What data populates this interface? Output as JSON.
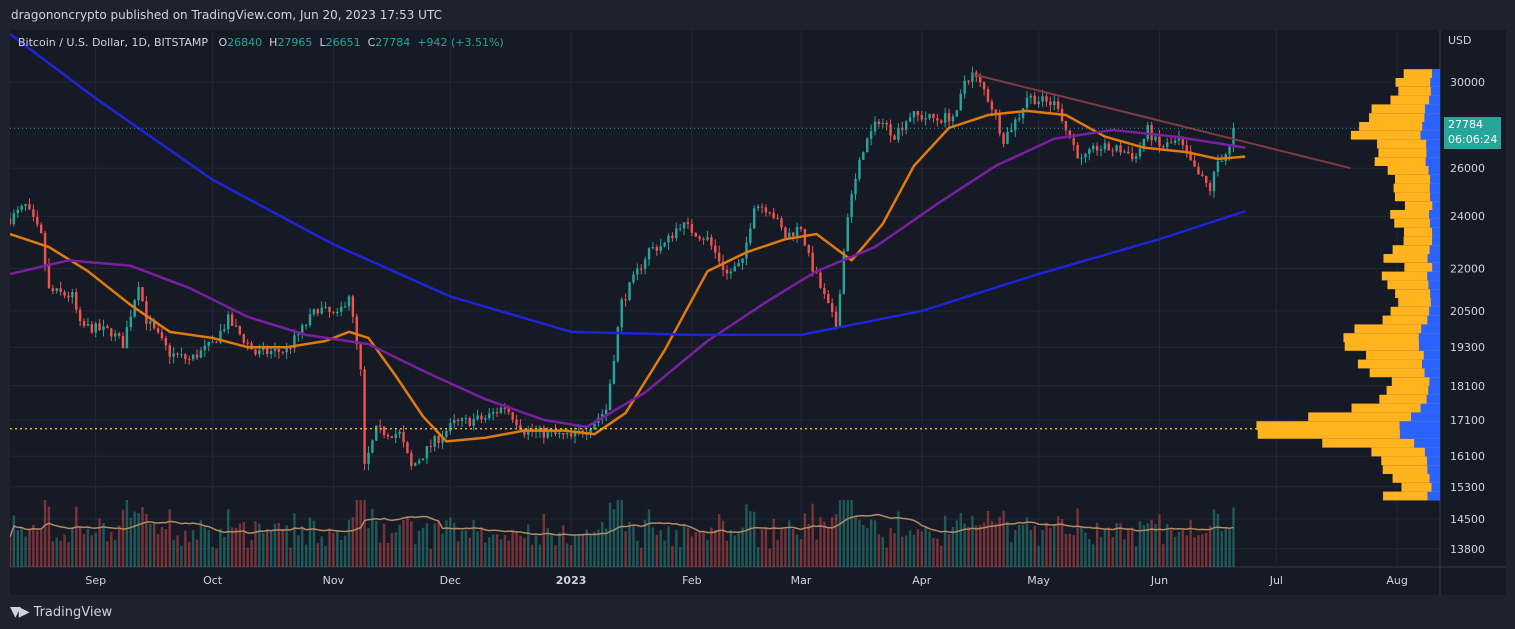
{
  "publisher": "dragononcrypto published on TradingView.com, Jun 20, 2023 17:53 UTC",
  "legend": {
    "symbol": "Bitcoin / U.S. Dollar, 1D, BITSTAMP",
    "o_label": "O",
    "o": "26840",
    "h_label": "H",
    "h": "27965",
    "l_label": "L",
    "l": "26651",
    "c_label": "C",
    "c": "27784",
    "change": "+942 (+3.51%)"
  },
  "currency": "USD",
  "last_price": "27784",
  "countdown": "06:06:24",
  "footer": "TradingView",
  "colors": {
    "background": "#161a25",
    "up": "#26a69a",
    "down": "#ef5350",
    "ma_fast": "#e07b0e",
    "ma_mid": "#7b1fa2",
    "ma_slow": "#1e24d8",
    "volume_profile": "#ffb31f",
    "volume_profile_dark": "#2962ff",
    "trendline": "#7e3b47",
    "poc_line": "#ffd600"
  },
  "chart_data": {
    "type": "candlestick",
    "symbol": "Bitcoin / U.S. Dollar, 1D, BITSTAMP",
    "y_scale": "log",
    "ylim": [
      13500,
      32500
    ],
    "y_ticks": [
      30000,
      26000,
      24000,
      22000,
      20500,
      19300,
      18100,
      17100,
      16100,
      15300,
      14500,
      13800
    ],
    "x_ticks": [
      "Sep",
      "Oct",
      "Nov",
      "Dec",
      "2023",
      "Feb",
      "Mar",
      "Apr",
      "May",
      "Jun",
      "Jul",
      "Aug"
    ],
    "tick_dates": [
      "2022-09-01",
      "2022-10-01",
      "2022-11-01",
      "2022-12-01",
      "2023-01-01",
      "2023-02-01",
      "2023-03-01",
      "2023-04-01",
      "2023-05-01",
      "2023-06-01",
      "2023-07-01",
      "2023-08-01"
    ],
    "xlim": [
      "2022-08-10",
      "2023-08-12"
    ],
    "last_close": 27784,
    "poc_level": 16850,
    "trendline": {
      "start": [
        "2023-04-14",
        30400
      ],
      "end": [
        "2023-07-20",
        26000
      ]
    },
    "close_path": [
      [
        "2022-08-10",
        23900
      ],
      [
        "2022-08-14",
        24400
      ],
      [
        "2022-08-18",
        23200
      ],
      [
        "2022-08-20",
        21200
      ],
      [
        "2022-08-26",
        21000
      ],
      [
        "2022-08-28",
        20000
      ],
      [
        "2022-09-05",
        19800
      ],
      [
        "2022-09-08",
        19400
      ],
      [
        "2022-09-12",
        21500
      ],
      [
        "2022-09-14",
        20200
      ],
      [
        "2022-09-20",
        19100
      ],
      [
        "2022-09-25",
        18900
      ],
      [
        "2022-10-01",
        19400
      ],
      [
        "2022-10-05",
        20200
      ],
      [
        "2022-10-12",
        19100
      ],
      [
        "2022-10-20",
        19200
      ],
      [
        "2022-10-28",
        20600
      ],
      [
        "2022-11-02",
        20300
      ],
      [
        "2022-11-05",
        21100
      ],
      [
        "2022-11-08",
        18500
      ],
      [
        "2022-11-09",
        15800
      ],
      [
        "2022-11-12",
        16800
      ],
      [
        "2022-11-18",
        16700
      ],
      [
        "2022-11-21",
        15800
      ],
      [
        "2022-11-27",
        16500
      ],
      [
        "2022-12-02",
        17000
      ],
      [
        "2022-12-10",
        17150
      ],
      [
        "2022-12-15",
        17500
      ],
      [
        "2022-12-20",
        16800
      ],
      [
        "2022-12-27",
        16700
      ],
      [
        "2023-01-01",
        16600
      ],
      [
        "2023-01-05",
        16850
      ],
      [
        "2023-01-10",
        17400
      ],
      [
        "2023-01-14",
        20800
      ],
      [
        "2023-01-21",
        22700
      ],
      [
        "2023-01-25",
        22900
      ],
      [
        "2023-01-29",
        23700
      ],
      [
        "2023-02-05",
        23100
      ],
      [
        "2023-02-10",
        21800
      ],
      [
        "2023-02-14",
        22200
      ],
      [
        "2023-02-17",
        24500
      ],
      [
        "2023-02-21",
        24300
      ],
      [
        "2023-02-25",
        23200
      ],
      [
        "2023-03-01",
        23600
      ],
      [
        "2023-03-03",
        22400
      ],
      [
        "2023-03-09",
        20300
      ],
      [
        "2023-03-10",
        20000
      ],
      [
        "2023-03-13",
        24100
      ],
      [
        "2023-03-17",
        26900
      ],
      [
        "2023-03-21",
        28200
      ],
      [
        "2023-03-25",
        27500
      ],
      [
        "2023-03-29",
        28400
      ],
      [
        "2023-04-05",
        28200
      ],
      [
        "2023-04-10",
        28400
      ],
      [
        "2023-04-12",
        30100
      ],
      [
        "2023-04-14",
        30400
      ],
      [
        "2023-04-17",
        29600
      ],
      [
        "2023-04-19",
        28800
      ],
      [
        "2023-04-22",
        27300
      ],
      [
        "2023-04-26",
        28400
      ],
      [
        "2023-04-28",
        29300
      ],
      [
        "2023-05-03",
        29000
      ],
      [
        "2023-05-06",
        28900
      ],
      [
        "2023-05-08",
        27700
      ],
      [
        "2023-05-12",
        26300
      ],
      [
        "2023-05-16",
        26900
      ],
      [
        "2023-05-22",
        26800
      ],
      [
        "2023-05-26",
        26500
      ],
      [
        "2023-05-29",
        27700
      ],
      [
        "2023-06-01",
        26900
      ],
      [
        "2023-06-06",
        27200
      ],
      [
        "2023-06-10",
        25900
      ],
      [
        "2023-06-14",
        25100
      ],
      [
        "2023-06-16",
        26300
      ],
      [
        "2023-06-19",
        26840
      ],
      [
        "2023-06-20",
        27784
      ]
    ],
    "series": [
      {
        "name": "",
        "color": "#e07b0e",
        "points": [
          [
            "2022-08-10",
            23300
          ],
          [
            "2022-08-20",
            22800
          ],
          [
            "2022-08-30",
            21900
          ],
          [
            "2022-09-10",
            20700
          ],
          [
            "2022-09-20",
            19800
          ],
          [
            "2022-10-01",
            19600
          ],
          [
            "2022-10-10",
            19300
          ],
          [
            "2022-10-20",
            19300
          ],
          [
            "2022-10-30",
            19500
          ],
          [
            "2022-11-05",
            19800
          ],
          [
            "2022-11-10",
            19600
          ],
          [
            "2022-11-17",
            18400
          ],
          [
            "2022-11-24",
            17200
          ],
          [
            "2022-11-30",
            16500
          ],
          [
            "2022-12-10",
            16600
          ],
          [
            "2022-12-20",
            16800
          ],
          [
            "2022-12-30",
            16800
          ],
          [
            "2023-01-07",
            16700
          ],
          [
            "2023-01-15",
            17300
          ],
          [
            "2023-01-25",
            19200
          ],
          [
            "2023-02-05",
            21900
          ],
          [
            "2023-02-15",
            22600
          ],
          [
            "2023-02-25",
            23100
          ],
          [
            "2023-03-05",
            23300
          ],
          [
            "2023-03-14",
            22300
          ],
          [
            "2023-03-22",
            23700
          ],
          [
            "2023-03-30",
            26100
          ],
          [
            "2023-04-08",
            27800
          ],
          [
            "2023-04-18",
            28400
          ],
          [
            "2023-04-28",
            28600
          ],
          [
            "2023-05-08",
            28400
          ],
          [
            "2023-05-18",
            27400
          ],
          [
            "2023-05-28",
            26900
          ],
          [
            "2023-06-08",
            26700
          ],
          [
            "2023-06-16",
            26400
          ],
          [
            "2023-06-23",
            26500
          ]
        ]
      },
      {
        "name": "",
        "color": "#7b1fa2",
        "points": [
          [
            "2022-08-10",
            21800
          ],
          [
            "2022-08-25",
            22300
          ],
          [
            "2022-09-10",
            22100
          ],
          [
            "2022-09-25",
            21300
          ],
          [
            "2022-10-10",
            20300
          ],
          [
            "2022-10-25",
            19700
          ],
          [
            "2022-11-10",
            19400
          ],
          [
            "2022-11-25",
            18500
          ],
          [
            "2022-12-10",
            17700
          ],
          [
            "2022-12-25",
            17100
          ],
          [
            "2023-01-05",
            16900
          ],
          [
            "2023-01-20",
            17900
          ],
          [
            "2023-02-05",
            19500
          ],
          [
            "2023-02-20",
            20800
          ],
          [
            "2023-03-05",
            21900
          ],
          [
            "2023-03-20",
            22800
          ],
          [
            "2023-04-05",
            24500
          ],
          [
            "2023-04-20",
            26100
          ],
          [
            "2023-05-05",
            27300
          ],
          [
            "2023-05-20",
            27700
          ],
          [
            "2023-06-05",
            27400
          ],
          [
            "2023-06-23",
            26900
          ]
        ]
      },
      {
        "name": "",
        "color": "#1e24d8",
        "points": [
          [
            "2022-08-10",
            32500
          ],
          [
            "2022-09-01",
            29200
          ],
          [
            "2022-10-01",
            25500
          ],
          [
            "2022-11-01",
            22900
          ],
          [
            "2022-12-01",
            21000
          ],
          [
            "2023-01-01",
            19800
          ],
          [
            "2023-02-01",
            19700
          ],
          [
            "2023-03-01",
            19700
          ],
          [
            "2023-04-01",
            20500
          ],
          [
            "2023-05-01",
            21800
          ],
          [
            "2023-06-01",
            23100
          ],
          [
            "2023-06-23",
            24200
          ]
        ]
      }
    ],
    "volume": {
      "n_bars": 285,
      "profile_levels": 60
    }
  }
}
